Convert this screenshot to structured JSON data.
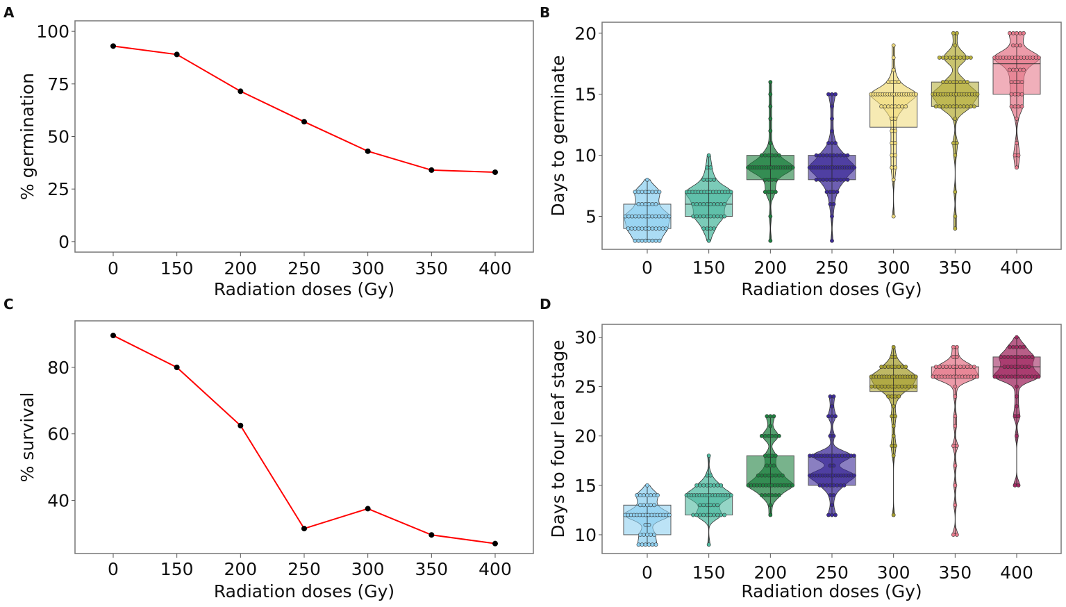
{
  "chart_data": [
    {
      "panel": "A",
      "type": "line",
      "xlabel": "Radiation doses (Gy)",
      "ylabel": "% germination",
      "categories": [
        "0",
        "150",
        "200",
        "250",
        "300",
        "350",
        "400"
      ],
      "values": [
        93,
        89,
        71.5,
        57,
        43,
        34,
        33
      ],
      "yticks": [
        0,
        25,
        50,
        75,
        100
      ],
      "ylim": [
        -5,
        105
      ],
      "line_color": "#ff0000",
      "marker_color": "#000000",
      "grid": false
    },
    {
      "panel": "B",
      "type": "violin-box-swarm",
      "xlabel": "Radiation doses (Gy)",
      "ylabel": "Days to germinate",
      "categories": [
        "0",
        "150",
        "200",
        "250",
        "300",
        "350",
        "400"
      ],
      "yticks": [
        5,
        10,
        15,
        20
      ],
      "ylim": [
        2.3,
        20.9
      ],
      "grid": false,
      "groups": [
        {
          "color": "#8fd0f0",
          "min": 3,
          "q1": 4,
          "median": 5,
          "q3": 6,
          "max": 8,
          "levels": [
            [
              3,
              8
            ],
            [
              4,
              12
            ],
            [
              5,
              14
            ],
            [
              6,
              6
            ],
            [
              7,
              8
            ],
            [
              8,
              1
            ]
          ]
        },
        {
          "color": "#4fb9a0",
          "min": 3,
          "q1": 5,
          "median": 6,
          "q3": 7,
          "max": 10,
          "levels": [
            [
              3,
              1
            ],
            [
              4,
              4
            ],
            [
              5,
              10
            ],
            [
              6,
              10
            ],
            [
              7,
              16
            ],
            [
              8,
              4
            ],
            [
              9,
              2
            ],
            [
              10,
              1
            ]
          ]
        },
        {
          "color": "#1e8040",
          "min": 3,
          "q1": 8,
          "median": 9,
          "q3": 10,
          "max": 16,
          "levels": [
            [
              3,
              1
            ],
            [
              5,
              1
            ],
            [
              7,
              4
            ],
            [
              8,
              4
            ],
            [
              9,
              20
            ],
            [
              10,
              6
            ],
            [
              11,
              1
            ],
            [
              12,
              1
            ],
            [
              13,
              1
            ],
            [
              14,
              1
            ],
            [
              15,
              1
            ],
            [
              16,
              1
            ]
          ]
        },
        {
          "color": "#3c2a98",
          "min": 3,
          "q1": 8,
          "median": 9,
          "q3": 10,
          "max": 15,
          "levels": [
            [
              3,
              1
            ],
            [
              5,
              1
            ],
            [
              6,
              2
            ],
            [
              7,
              4
            ],
            [
              8,
              10
            ],
            [
              9,
              20
            ],
            [
              10,
              10
            ],
            [
              11,
              3
            ],
            [
              12,
              1
            ],
            [
              13,
              1
            ],
            [
              14,
              1
            ],
            [
              15,
              3
            ]
          ]
        },
        {
          "color": "#f0dc80",
          "min": 5,
          "q1": 12.3,
          "median": 15,
          "q3": 15,
          "max": 19,
          "levels": [
            [
              5,
              1
            ],
            [
              8,
              1
            ],
            [
              9,
              2
            ],
            [
              10,
              2
            ],
            [
              11,
              2
            ],
            [
              12,
              2
            ],
            [
              13,
              2
            ],
            [
              14,
              8
            ],
            [
              15,
              20
            ],
            [
              16,
              4
            ],
            [
              17,
              1
            ],
            [
              18,
              1
            ],
            [
              19,
              1
            ]
          ]
        },
        {
          "color": "#b8b040",
          "min": 4,
          "q1": 14,
          "median": 15,
          "q3": 16,
          "max": 20,
          "levels": [
            [
              4,
              1
            ],
            [
              5,
              1
            ],
            [
              7,
              1
            ],
            [
              10,
              1
            ],
            [
              11,
              2
            ],
            [
              13,
              1
            ],
            [
              14,
              12
            ],
            [
              15,
              18
            ],
            [
              16,
              8
            ],
            [
              18,
              10
            ],
            [
              19,
              1
            ],
            [
              20,
              2
            ]
          ]
        },
        {
          "color": "#e67a8c",
          "min": 9,
          "q1": 15,
          "median": 17.5,
          "q3": 18,
          "max": 20,
          "levels": [
            [
              9,
              1
            ],
            [
              10,
              2
            ],
            [
              11,
              1
            ],
            [
              13,
              1
            ],
            [
              14,
              4
            ],
            [
              15,
              4
            ],
            [
              16,
              4
            ],
            [
              17,
              5
            ],
            [
              18,
              16
            ],
            [
              19,
              3
            ],
            [
              20,
              5
            ]
          ]
        }
      ]
    },
    {
      "panel": "C",
      "type": "line",
      "xlabel": "Radiation doses (Gy)",
      "ylabel": "% survival",
      "categories": [
        "0",
        "150",
        "200",
        "250",
        "300",
        "350",
        "400"
      ],
      "values": [
        89.6,
        80,
        62.5,
        31.5,
        37.5,
        29.6,
        27
      ],
      "yticks": [
        40,
        60,
        80
      ],
      "ylim": [
        24,
        94
      ],
      "line_color": "#ff0000",
      "marker_color": "#000000",
      "grid": false
    },
    {
      "panel": "D",
      "type": "violin-box-swarm",
      "xlabel": "Radiation doses (Gy)",
      "ylabel": "Days to four leaf stage",
      "categories": [
        "0",
        "150",
        "200",
        "250",
        "300",
        "350",
        "400"
      ],
      "yticks": [
        10,
        15,
        20,
        25,
        30
      ],
      "ylim": [
        8.1,
        31.3
      ],
      "grid": false,
      "groups": [
        {
          "color": "#8fd0f0",
          "min": 9,
          "q1": 10,
          "median": 12,
          "q3": 13,
          "max": 15,
          "levels": [
            [
              9,
              6
            ],
            [
              10,
              5
            ],
            [
              11,
              2
            ],
            [
              12,
              16
            ],
            [
              13,
              5
            ],
            [
              14,
              7
            ],
            [
              15,
              1
            ]
          ]
        },
        {
          "color": "#4fb9a0",
          "min": 9,
          "q1": 12,
          "median": 14,
          "q3": 14,
          "max": 18,
          "levels": [
            [
              9,
              1
            ],
            [
              12,
              10
            ],
            [
              13,
              6
            ],
            [
              14,
              18
            ],
            [
              15,
              8
            ],
            [
              16,
              2
            ],
            [
              18,
              1
            ]
          ]
        },
        {
          "color": "#1e8040",
          "min": 12,
          "q1": 15,
          "median": 15,
          "q3": 18,
          "max": 22,
          "levels": [
            [
              12,
              1
            ],
            [
              13,
              1
            ],
            [
              14,
              6
            ],
            [
              15,
              16
            ],
            [
              16,
              8
            ],
            [
              17,
              3
            ],
            [
              18,
              4
            ],
            [
              20,
              6
            ],
            [
              21,
              1
            ],
            [
              22,
              3
            ]
          ]
        },
        {
          "color": "#3c2a98",
          "min": 12,
          "q1": 15,
          "median": 16,
          "q3": 18,
          "max": 24,
          "levels": [
            [
              12,
              3
            ],
            [
              13,
              1
            ],
            [
              14,
              2
            ],
            [
              15,
              8
            ],
            [
              16,
              18
            ],
            [
              17,
              2
            ],
            [
              18,
              16
            ],
            [
              20,
              2
            ],
            [
              22,
              3
            ],
            [
              23,
              1
            ],
            [
              24,
              2
            ]
          ]
        },
        {
          "color": "#a8a030",
          "min": 12,
          "q1": 24.5,
          "median": 25,
          "q3": 26,
          "max": 29,
          "levels": [
            [
              12,
              1
            ],
            [
              18,
              1
            ],
            [
              19,
              2
            ],
            [
              20,
              1
            ],
            [
              21,
              1
            ],
            [
              22,
              2
            ],
            [
              23,
              1
            ],
            [
              24,
              4
            ],
            [
              25,
              14
            ],
            [
              26,
              18
            ],
            [
              27,
              8
            ],
            [
              28,
              2
            ],
            [
              29,
              1
            ]
          ]
        },
        {
          "color": "#e67a8c",
          "min": 10,
          "q1": 26,
          "median": 26,
          "q3": 27,
          "max": 29,
          "levels": [
            [
              10,
              2
            ],
            [
              13,
              1
            ],
            [
              15,
              1
            ],
            [
              17,
              1
            ],
            [
              19,
              2
            ],
            [
              21,
              1
            ],
            [
              22,
              1
            ],
            [
              24,
              1
            ],
            [
              25,
              1
            ],
            [
              26,
              16
            ],
            [
              27,
              12
            ],
            [
              28,
              2
            ],
            [
              29,
              2
            ]
          ]
        },
        {
          "color": "#a02860",
          "min": 15,
          "q1": 26,
          "median": 27,
          "q3": 28,
          "max": 30,
          "levels": [
            [
              15,
              2
            ],
            [
              20,
              1
            ],
            [
              22,
              2
            ],
            [
              23,
              1
            ],
            [
              24,
              1
            ],
            [
              25,
              1
            ],
            [
              26,
              14
            ],
            [
              27,
              8
            ],
            [
              28,
              10
            ],
            [
              29,
              5
            ],
            [
              30,
              1
            ]
          ]
        }
      ]
    }
  ]
}
